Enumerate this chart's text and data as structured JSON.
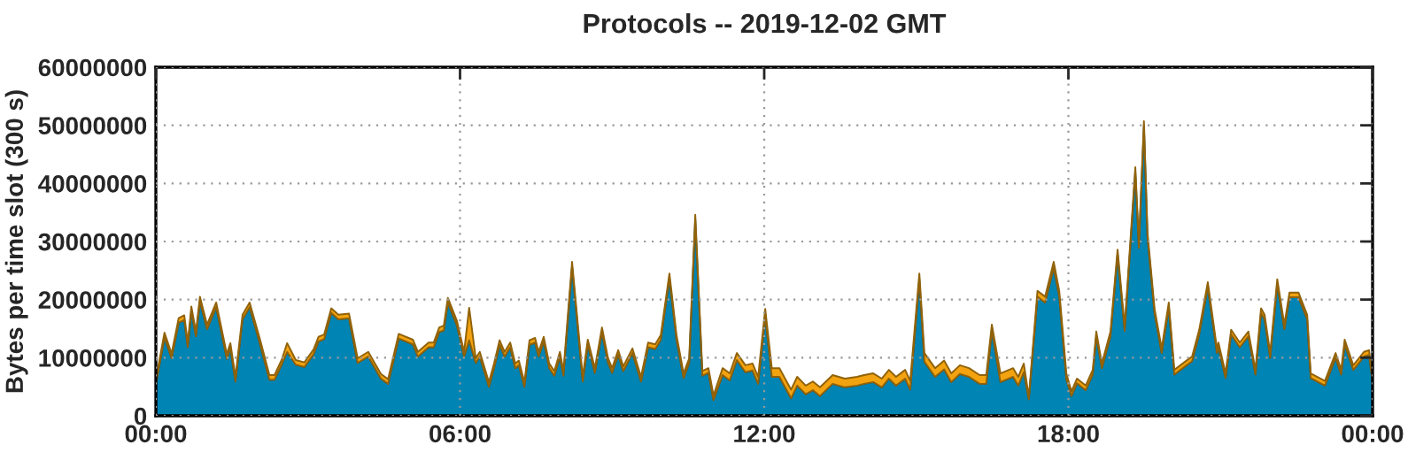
{
  "chart_data": {
    "type": "area",
    "stacked": true,
    "title": "Protocols -- 2019-12-02 GMT",
    "ylabel": "Bytes per time slot (300 s)",
    "x": [
      0.01,
      0.17,
      0.31,
      0.45,
      0.56,
      0.63,
      0.7,
      0.79,
      0.87,
      1.01,
      1.19,
      1.4,
      1.47,
      1.57,
      1.71,
      1.85,
      2.06,
      2.24,
      2.34,
      2.48,
      2.59,
      2.76,
      2.93,
      3.11,
      3.21,
      3.32,
      3.46,
      3.6,
      3.81,
      3.98,
      4.19,
      4.44,
      4.58,
      4.79,
      5.07,
      5.17,
      5.38,
      5.48,
      5.59,
      5.68,
      5.76,
      5.94,
      6.08,
      6.18,
      6.31,
      6.39,
      6.57,
      6.67,
      6.78,
      6.88,
      6.99,
      7.09,
      7.16,
      7.27,
      7.37,
      7.48,
      7.55,
      7.65,
      7.76,
      7.86,
      7.97,
      8.04,
      8.21,
      8.42,
      8.52,
      8.66,
      8.8,
      8.92,
      9.0,
      9.12,
      9.22,
      9.4,
      9.57,
      9.71,
      9.85,
      9.96,
      10.13,
      10.27,
      10.41,
      10.52,
      10.64,
      10.78,
      10.9,
      11.0,
      11.18,
      11.32,
      11.46,
      11.63,
      11.77,
      11.88,
      12.02,
      12.15,
      12.3,
      12.53,
      12.65,
      12.82,
      12.96,
      13.1,
      13.35,
      13.59,
      13.83,
      13.97,
      14.15,
      14.32,
      14.46,
      14.6,
      14.78,
      14.88,
      15.06,
      15.16,
      15.37,
      15.55,
      15.69,
      15.86,
      16.04,
      16.25,
      16.38,
      16.49,
      16.66,
      16.91,
      17.01,
      17.12,
      17.22,
      17.39,
      17.54,
      17.71,
      17.82,
      17.96,
      18.06,
      18.17,
      18.34,
      18.48,
      18.55,
      18.66,
      18.83,
      18.97,
      19.11,
      19.32,
      19.39,
      19.49,
      19.56,
      19.7,
      19.84,
      19.98,
      20.09,
      20.33,
      20.44,
      20.58,
      20.75,
      20.93,
      20.96,
      21.1,
      21.21,
      21.38,
      21.55,
      21.69,
      21.8,
      21.87,
      21.98,
      22.12,
      22.26,
      22.36,
      22.54,
      22.71,
      22.78,
      23.06,
      23.27,
      23.38,
      23.45,
      23.62,
      23.83,
      23.93,
      24.0
    ],
    "series": [
      {
        "color": "#0084b4",
        "values": [
          5900000,
          13500000,
          9900000,
          16000000,
          16500000,
          11800000,
          18000000,
          13700000,
          19700000,
          14900000,
          18700000,
          9800000,
          11700000,
          5900000,
          16600000,
          18700000,
          12200000,
          6200000,
          6200000,
          8800000,
          11000000,
          8800000,
          8400000,
          10600000,
          12800000,
          13200000,
          17700000,
          16600000,
          16800000,
          9100000,
          10200000,
          6400000,
          5500000,
          13300000,
          12300000,
          10200000,
          11800000,
          11800000,
          14400000,
          14700000,
          19500000,
          15500000,
          10200000,
          13000000,
          9100000,
          10200000,
          5000000,
          8200000,
          12200000,
          10200000,
          11800000,
          8200000,
          8700000,
          5000000,
          12200000,
          12600000,
          10200000,
          12800000,
          8200000,
          6900000,
          10200000,
          6900000,
          25700000,
          5900000,
          12300000,
          7400000,
          14400000,
          9100000,
          7400000,
          10500000,
          7700000,
          10800000,
          5900000,
          11800000,
          11500000,
          13100000,
          23700000,
          13100000,
          6500000,
          9100000,
          33800000,
          6900000,
          7400000,
          2700000,
          7000000,
          6100000,
          9600000,
          7500000,
          7800000,
          5500000,
          17200000,
          6700000,
          6700000,
          3000000,
          5200000,
          3700000,
          4400000,
          3400000,
          5500000,
          4900000,
          5200000,
          5500000,
          5800000,
          4900000,
          6400000,
          5200000,
          6400000,
          4500000,
          23500000,
          9300000,
          6700000,
          8000000,
          5800000,
          7200000,
          6700000,
          5500000,
          5500000,
          14700000,
          5800000,
          6700000,
          5200000,
          7500000,
          2800000,
          20500000,
          19500000,
          25500000,
          20500000,
          6300000,
          3400000,
          5600000,
          4400000,
          7100000,
          13700000,
          8200000,
          13700000,
          27800000,
          14600000,
          42000000,
          28900000,
          49900000,
          30800000,
          17600000,
          10800000,
          18700000,
          7100000,
          8700000,
          9400000,
          14000000,
          22200000,
          10800000,
          11800000,
          6500000,
          14000000,
          11800000,
          13700000,
          7100000,
          17700000,
          16600000,
          10000000,
          22700000,
          14900000,
          20400000,
          20400000,
          16600000,
          6500000,
          5200000,
          10000000,
          7100000,
          12300000,
          7900000,
          10200000,
          10500000,
          5900000
        ]
      },
      {
        "color": "#f2a30f",
        "values": [
          800000,
          800000,
          800000,
          800000,
          800000,
          800000,
          800000,
          800000,
          800000,
          800000,
          800000,
          800000,
          800000,
          800000,
          800000,
          800000,
          800000,
          800000,
          800000,
          800000,
          1500000,
          800000,
          800000,
          800000,
          800000,
          800000,
          800000,
          800000,
          800000,
          800000,
          800000,
          800000,
          800000,
          800000,
          800000,
          800000,
          800000,
          800000,
          800000,
          800000,
          800000,
          800000,
          800000,
          5600000,
          800000,
          800000,
          800000,
          800000,
          800000,
          800000,
          800000,
          800000,
          800000,
          800000,
          800000,
          800000,
          800000,
          800000,
          800000,
          800000,
          800000,
          800000,
          800000,
          800000,
          800000,
          800000,
          800000,
          800000,
          800000,
          800000,
          800000,
          800000,
          800000,
          800000,
          800000,
          800000,
          800000,
          800000,
          800000,
          800000,
          800000,
          800000,
          800000,
          800000,
          1200000,
          1200000,
          1200000,
          1200000,
          1200000,
          1200000,
          1200000,
          1500000,
          1500000,
          1500000,
          1500000,
          1500000,
          1500000,
          1500000,
          1500000,
          1500000,
          1500000,
          1500000,
          1500000,
          1500000,
          1500000,
          1500000,
          1500000,
          1500000,
          1000000,
          1500000,
          1500000,
          1500000,
          1500000,
          1500000,
          1500000,
          1500000,
          1500000,
          1000000,
          1500000,
          1500000,
          1500000,
          1500000,
          500000,
          1000000,
          1000000,
          1000000,
          1000000,
          1000000,
          800000,
          800000,
          800000,
          800000,
          800000,
          800000,
          800000,
          800000,
          800000,
          800000,
          800000,
          800000,
          800000,
          800000,
          800000,
          800000,
          800000,
          800000,
          800000,
          800000,
          800000,
          800000,
          800000,
          800000,
          800000,
          800000,
          800000,
          800000,
          800000,
          800000,
          800000,
          800000,
          800000,
          800000,
          800000,
          800000,
          800000,
          800000,
          800000,
          800000,
          800000,
          800000,
          800000,
          800000,
          800000
        ]
      }
    ],
    "xlim": [
      0,
      24
    ],
    "xticks": [
      {
        "value": 0,
        "label": "00:00"
      },
      {
        "value": 6,
        "label": "06:00"
      },
      {
        "value": 12,
        "label": "12:00"
      },
      {
        "value": 18,
        "label": "18:00"
      },
      {
        "value": 24,
        "label": "00:00"
      }
    ],
    "ylim": [
      0,
      60000000
    ],
    "yticks": [
      0,
      10000000,
      20000000,
      30000000,
      40000000,
      50000000,
      60000000
    ],
    "grid": true
  }
}
